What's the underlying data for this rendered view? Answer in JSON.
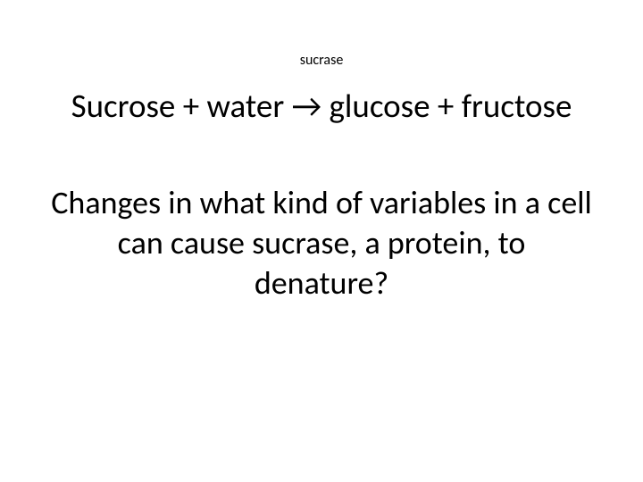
{
  "enzyme_label": "sucrase",
  "equation": {
    "reactants": "Sucrose + water",
    "arrow": "→",
    "products": "glucose + fructose"
  },
  "question_text": "Changes in what kind of variables in a cell can cause sucrase, a protein, to denature?",
  "colors": {
    "background": "#ffffff",
    "text": "#000000"
  },
  "typography": {
    "enzyme_fontsize": 16,
    "equation_fontsize": 37,
    "question_fontsize": 36,
    "font_family": "Calibri"
  }
}
